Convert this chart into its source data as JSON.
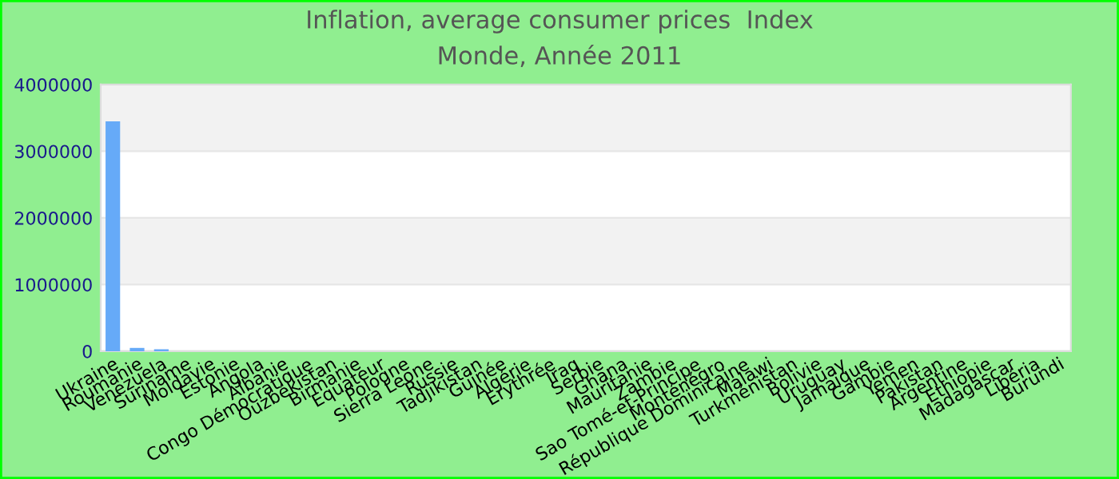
{
  "chart_data": {
    "type": "bar",
    "title": "Inflation, average consumer prices  Index",
    "subtitle": "Monde, Année 2011",
    "categories": [
      "Ukraine",
      "Roumanie",
      "Venezuela",
      "Suriname",
      "Moldavie",
      "Estonie",
      "Angola",
      "Albanie",
      "Congo Démocratique",
      "Ouzbékistan",
      "Birmanie",
      "Equateur",
      "Pologne",
      "Sierra Leone",
      "Russie",
      "Tadjikistan",
      "Guinée",
      "Algérie",
      "Erythrée",
      "Iraq",
      "Serbie",
      "Ghana",
      "Mauritanie",
      "Zambie",
      "Sao Tomé-et-Principe",
      "Monténégro",
      "République Dominicaine",
      "Malawi",
      "Turkménistan",
      "Bolivie",
      "Uruguay",
      "Jamaïque",
      "Gambie",
      "Yemen",
      "Pakistan",
      "Argentine",
      "Ethiopie",
      "Madagascar",
      "Libéria",
      "Burundi"
    ],
    "values": [
      3450000,
      50000,
      30000,
      0,
      0,
      0,
      0,
      0,
      0,
      0,
      0,
      0,
      0,
      0,
      0,
      0,
      0,
      0,
      0,
      0,
      0,
      0,
      0,
      0,
      0,
      0,
      0,
      0,
      0,
      0,
      0,
      0,
      0,
      0,
      0,
      0,
      0,
      0,
      0,
      0
    ],
    "color": "#66aaf8",
    "ylim": [
      0,
      4000000
    ],
    "yticks": [
      0,
      1000000,
      2000000,
      3000000,
      4000000
    ],
    "grid": "y",
    "legend": false
  }
}
